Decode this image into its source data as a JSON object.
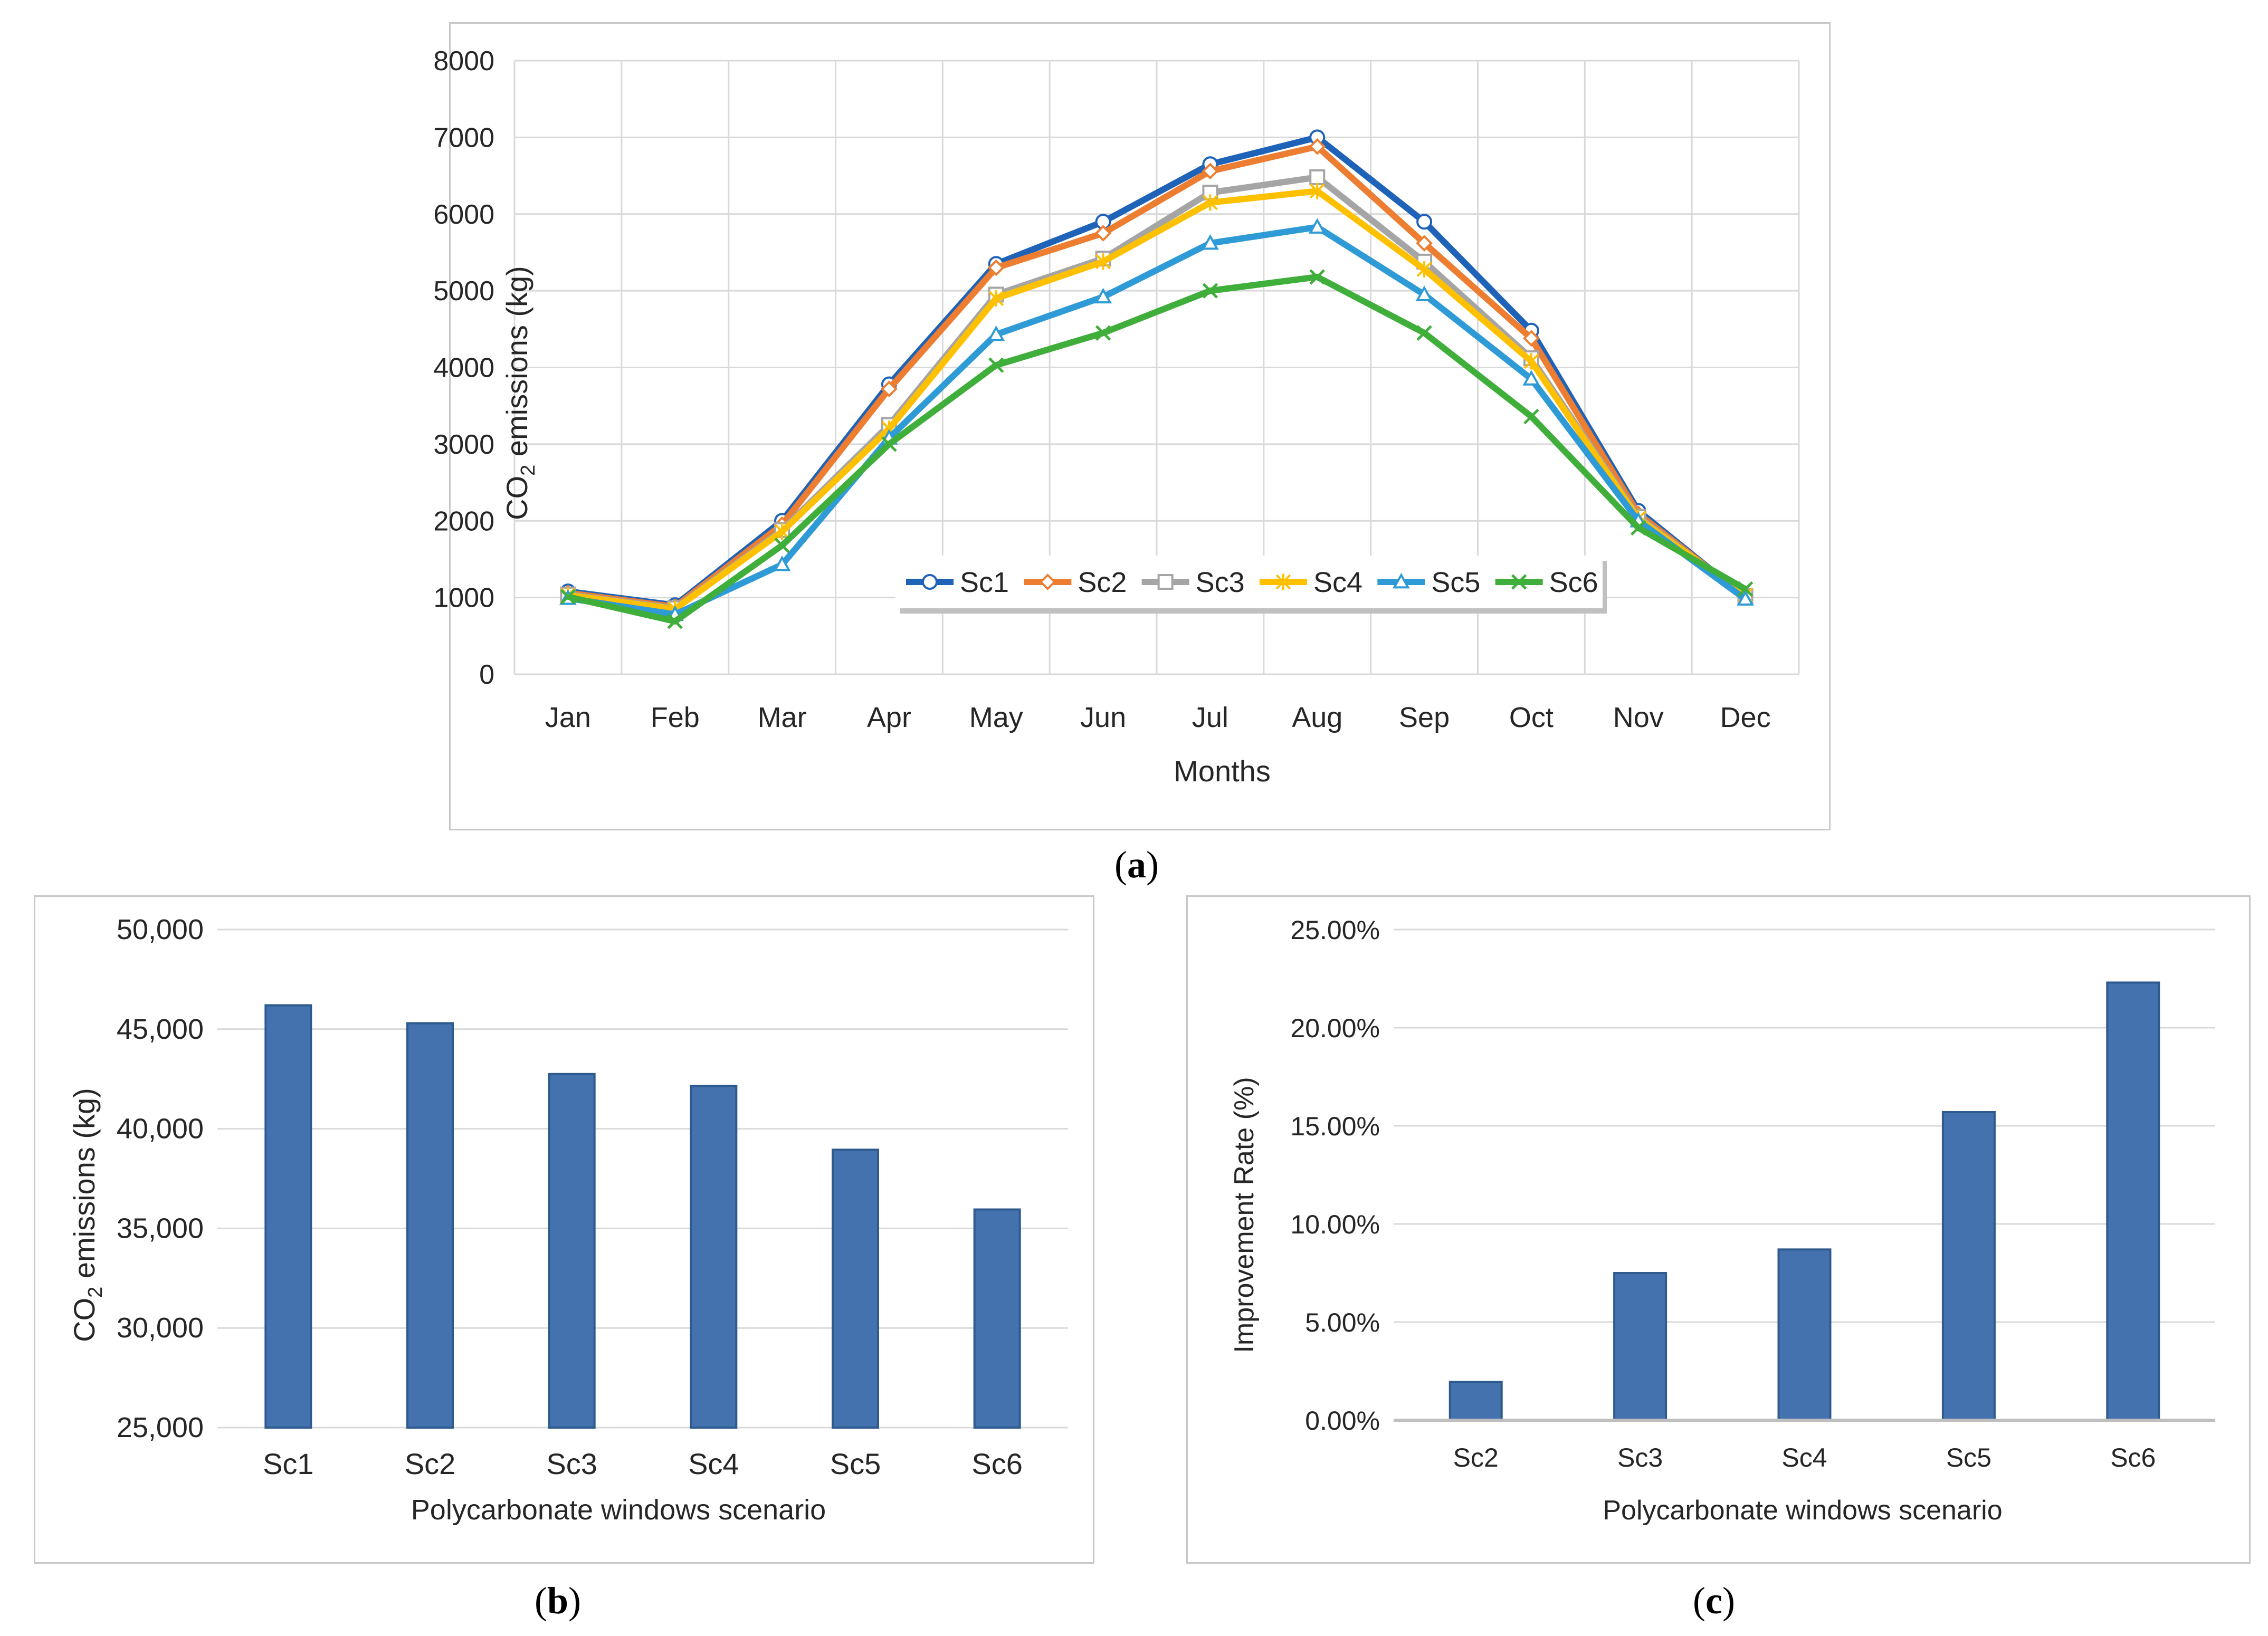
{
  "captions": {
    "a_open": "(",
    "a_letter": "a",
    "a_close": ")",
    "b_open": "(",
    "b_letter": "b",
    "b_close": ")",
    "c_open": "(",
    "c_letter": "c",
    "c_close": ")"
  },
  "chart_data": [
    {
      "type": "line",
      "xlabel": "Months",
      "ylabel_prefix": "CO",
      "ylabel_sub": "2",
      "ylabel_suffix": " emissions (kg)",
      "ylim": [
        0,
        8000
      ],
      "yticks": [
        "0",
        "1000",
        "2000",
        "3000",
        "4000",
        "5000",
        "6000",
        "7000",
        "8000"
      ],
      "grid": true,
      "legend": "inside-bottom-center",
      "categories": [
        "Jan",
        "Feb",
        "Mar",
        "Apr",
        "May",
        "Jun",
        "Jul",
        "Aug",
        "Sep",
        "Oct",
        "Nov",
        "Dec"
      ],
      "series": [
        {
          "name": "Sc1",
          "color": "#1f63b8",
          "marker": "circle",
          "values": [
            1080,
            900,
            2000,
            3780,
            5350,
            5900,
            6650,
            7000,
            5900,
            4480,
            2130,
            1000
          ]
        },
        {
          "name": "Sc2",
          "color": "#ed7d31",
          "marker": "diamond",
          "values": [
            1060,
            880,
            1950,
            3720,
            5300,
            5750,
            6560,
            6880,
            5620,
            4380,
            2090,
            1010
          ]
        },
        {
          "name": "Sc3",
          "color": "#a5a5a5",
          "marker": "square",
          "values": [
            1040,
            860,
            1880,
            3250,
            4950,
            5420,
            6280,
            6480,
            5380,
            4120,
            2050,
            1020
          ]
        },
        {
          "name": "Sc4",
          "color": "#ffc000",
          "marker": "star",
          "values": [
            1030,
            850,
            1860,
            3200,
            4900,
            5380,
            6150,
            6300,
            5280,
            4080,
            2030,
            1030
          ]
        },
        {
          "name": "Sc5",
          "color": "#2e9bd6",
          "marker": "triangle",
          "values": [
            990,
            780,
            1430,
            3080,
            4430,
            4920,
            5620,
            5830,
            4950,
            3850,
            2000,
            980
          ]
        },
        {
          "name": "Sc6",
          "color": "#3fae3a",
          "marker": "x",
          "values": [
            1010,
            690,
            1680,
            3000,
            4030,
            4450,
            5000,
            5180,
            4450,
            3360,
            1910,
            1110
          ]
        }
      ]
    },
    {
      "type": "bar",
      "xlabel": "Polycarbonate windows scenario",
      "ylabel_prefix": "CO",
      "ylabel_sub": "2",
      "ylabel_suffix": " emissions (kg)",
      "ylim": [
        25000,
        50000
      ],
      "yticks": [
        "25,000",
        "30,000",
        "35,000",
        "40,000",
        "45,000",
        "50,000"
      ],
      "grid": true,
      "color": "#4472ae",
      "categories": [
        "Sc1",
        "Sc2",
        "Sc3",
        "Sc4",
        "Sc5",
        "Sc6"
      ],
      "values": [
        46200,
        45300,
        42750,
        42150,
        38950,
        35950
      ]
    },
    {
      "type": "bar",
      "xlabel": "Polycarbonate windows scenario",
      "ylabel": "Improvement Rate (%)",
      "ylim": [
        0,
        25
      ],
      "yticks": [
        "0.00%",
        "5.00%",
        "10.00%",
        "15.00%",
        "20.00%",
        "25.00%"
      ],
      "grid": true,
      "color": "#4472ae",
      "categories": [
        "Sc2",
        "Sc3",
        "Sc4",
        "Sc5",
        "Sc6"
      ],
      "values": [
        1.95,
        7.5,
        8.7,
        15.7,
        22.3
      ]
    }
  ]
}
